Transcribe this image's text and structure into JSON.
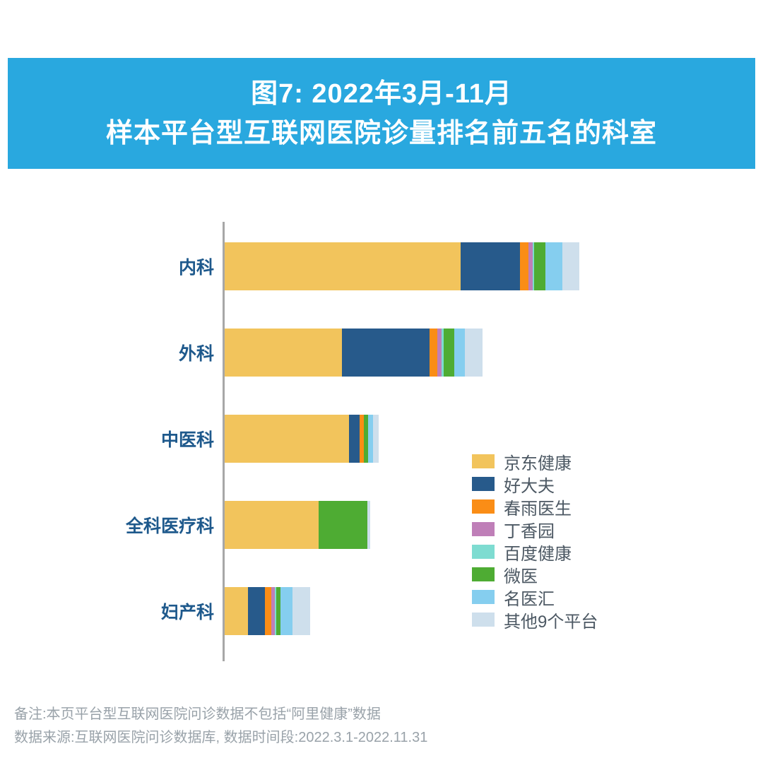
{
  "header": {
    "title_line1": "图7: 2022年3月-11月",
    "title_line2": "样本平台型互联网医院诊量排名前五名的科室",
    "banner_color": "#29A8DF",
    "title_text_color": "#FFFFFF"
  },
  "chart_data": {
    "type": "bar",
    "orientation": "horizontal",
    "stacked": true,
    "title": "图7: 2022年3月-11月 样本平台型互联网医院诊量排名前五名的科室",
    "categories": [
      "内科",
      "外科",
      "中医科",
      "全科医疗科",
      "妇产科"
    ],
    "series": [
      {
        "name": "京东健康",
        "color": "#F2C45C",
        "values": [
          334,
          166,
          176,
          133,
          33
        ]
      },
      {
        "name": "好大夫",
        "color": "#275A8B",
        "values": [
          84,
          124,
          15,
          0,
          24
        ]
      },
      {
        "name": "春雨医生",
        "color": "#FA8D16",
        "values": [
          12,
          11,
          6,
          0,
          9
        ]
      },
      {
        "name": "丁香园",
        "color": "#BF7FB8",
        "values": [
          6,
          6,
          0,
          0,
          5
        ]
      },
      {
        "name": "百度健康",
        "color": "#7EDCD1",
        "values": [
          2,
          3,
          0,
          0,
          2
        ]
      },
      {
        "name": "微医",
        "color": "#4EAC33",
        "values": [
          16,
          15,
          6,
          69,
          6
        ]
      },
      {
        "name": "名医汇",
        "color": "#85CEEF",
        "values": [
          24,
          15,
          7,
          0,
          17
        ]
      },
      {
        "name": "其他9个平台",
        "color": "#CEDFEC",
        "values": [
          24,
          25,
          8,
          4,
          25
        ]
      }
    ],
    "bar_totals": [
      502,
      365,
      218,
      206,
      121
    ],
    "value_unit": "relative bar length in px (no numeric axis labels shown in figure)",
    "x_axis_visible": false,
    "y_axis_line_color": "#A7A7A7",
    "gridlines": false,
    "value_labels_visible": false,
    "legend_position": "right-middle",
    "category_label_color": "#1E598C"
  },
  "footnotes": {
    "note": "备注:本页平台型互联网医院问诊数据不包括“阿里健康”数据",
    "source": "数据来源:互联网医院问诊数据库, 数据时间段:2022.3.1-2022.11.31"
  }
}
